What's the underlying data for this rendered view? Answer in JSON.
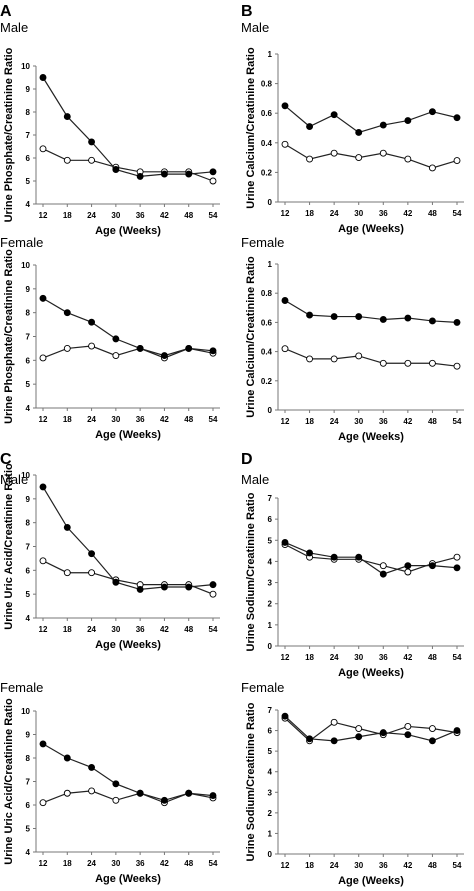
{
  "chart_data": [
    {
      "type": "line",
      "panel": "A",
      "group": "Male",
      "x": [
        12,
        18,
        24,
        30,
        36,
        42,
        48,
        54
      ],
      "xlabel": "Age (Weeks)",
      "ylabel": "Urine Phosphate/Creatinine Ratio",
      "ylim": [
        4,
        10
      ],
      "yticks": [
        "4",
        "5",
        "6",
        "7",
        "8",
        "9",
        "10"
      ],
      "series": [
        {
          "marker": "filled",
          "values": [
            9.5,
            7.8,
            6.7,
            5.5,
            5.2,
            5.3,
            5.3,
            5.4
          ]
        },
        {
          "marker": "open",
          "values": [
            6.4,
            5.9,
            5.9,
            5.6,
            5.4,
            5.4,
            5.4,
            5.0
          ]
        }
      ]
    },
    {
      "type": "line",
      "panel": "B",
      "group": "Male",
      "x": [
        12,
        18,
        24,
        30,
        36,
        42,
        48,
        54
      ],
      "xlabel": "Age (Weeks)",
      "ylabel": "Urine Calcium/Creatinine Ratio",
      "ylim": [
        0,
        1
      ],
      "yticks": [
        "0",
        "0.2",
        "0.4",
        "0.6",
        "0.8",
        "1"
      ],
      "series": [
        {
          "marker": "filled",
          "values": [
            0.65,
            0.51,
            0.59,
            0.47,
            0.52,
            0.55,
            0.61,
            0.57
          ]
        },
        {
          "marker": "open",
          "values": [
            0.39,
            0.29,
            0.33,
            0.3,
            0.33,
            0.29,
            0.23,
            0.28
          ]
        }
      ]
    },
    {
      "type": "line",
      "panel": "",
      "group": "Female",
      "x": [
        12,
        18,
        24,
        30,
        36,
        42,
        48,
        54
      ],
      "xlabel": "Age (Weeks)",
      "ylabel": "Urine Phosphate/Creatinine Ratio",
      "ylim": [
        4,
        10
      ],
      "yticks": [
        "4",
        "5",
        "6",
        "7",
        "8",
        "9",
        "10"
      ],
      "series": [
        {
          "marker": "filled",
          "values": [
            8.6,
            8.0,
            7.6,
            6.9,
            6.5,
            6.2,
            6.5,
            6.4
          ]
        },
        {
          "marker": "open",
          "values": [
            6.1,
            6.5,
            6.6,
            6.2,
            6.5,
            6.1,
            6.5,
            6.3
          ]
        }
      ]
    },
    {
      "type": "line",
      "panel": "",
      "group": "Female",
      "x": [
        12,
        18,
        24,
        30,
        36,
        42,
        48,
        54
      ],
      "xlabel": "Age (Weeks)",
      "ylabel": "Urine Calcium/Creatinine Ratio",
      "ylim": [
        0,
        1
      ],
      "yticks": [
        "0",
        "0.2",
        "0.4",
        "0.6",
        "0.8",
        "1"
      ],
      "series": [
        {
          "marker": "filled",
          "values": [
            0.75,
            0.65,
            0.64,
            0.64,
            0.62,
            0.63,
            0.61,
            0.6
          ]
        },
        {
          "marker": "open",
          "values": [
            0.42,
            0.35,
            0.35,
            0.37,
            0.32,
            0.32,
            0.32,
            0.3
          ]
        }
      ]
    },
    {
      "type": "line",
      "panel": "C",
      "group": "Male",
      "x": [
        12,
        18,
        24,
        30,
        36,
        42,
        48,
        54
      ],
      "xlabel": "Age (Weeks)",
      "ylabel": "Urine Uric Acid/Creatinine Ratio",
      "ylim": [
        4,
        10
      ],
      "yticks": [
        "4",
        "5",
        "6",
        "7",
        "8",
        "9",
        "10"
      ],
      "series": [
        {
          "marker": "filled",
          "values": [
            9.5,
            7.8,
            6.7,
            5.5,
            5.2,
            5.3,
            5.3,
            5.4
          ]
        },
        {
          "marker": "open",
          "values": [
            6.4,
            5.9,
            5.9,
            5.6,
            5.4,
            5.4,
            5.4,
            5.0
          ]
        }
      ]
    },
    {
      "type": "line",
      "panel": "D",
      "group": "Male",
      "x": [
        12,
        18,
        24,
        30,
        36,
        42,
        48,
        54
      ],
      "xlabel": "Age (Weeks)",
      "ylabel": "Urine Sodium/Creatinine Ratio",
      "ylim": [
        0,
        7
      ],
      "yticks": [
        "0",
        "1",
        "2",
        "3",
        "4",
        "5",
        "6",
        "7"
      ],
      "series": [
        {
          "marker": "filled",
          "values": [
            4.9,
            4.4,
            4.2,
            4.2,
            3.4,
            3.8,
            3.8,
            3.7
          ]
        },
        {
          "marker": "open",
          "values": [
            4.8,
            4.2,
            4.1,
            4.1,
            3.8,
            3.5,
            3.9,
            4.2
          ]
        }
      ]
    },
    {
      "type": "line",
      "panel": "",
      "group": "Female",
      "x": [
        12,
        18,
        24,
        30,
        36,
        42,
        48,
        54
      ],
      "xlabel": "Age (Weeks)",
      "ylabel": "Urine Uric Acid/Creatinine Ratio",
      "ylim": [
        4,
        10
      ],
      "yticks": [
        "4",
        "5",
        "6",
        "7",
        "8",
        "9",
        "10"
      ],
      "series": [
        {
          "marker": "filled",
          "values": [
            8.6,
            8.0,
            7.6,
            6.9,
            6.5,
            6.2,
            6.5,
            6.4
          ]
        },
        {
          "marker": "open",
          "values": [
            6.1,
            6.5,
            6.6,
            6.2,
            6.5,
            6.1,
            6.5,
            6.3
          ]
        }
      ]
    },
    {
      "type": "line",
      "panel": "",
      "group": "Female",
      "x": [
        12,
        18,
        24,
        30,
        36,
        42,
        48,
        54
      ],
      "xlabel": "Age (Weeks)",
      "ylabel": "Urine Sodium/Creatinine Ratio",
      "ylim": [
        0,
        7
      ],
      "yticks": [
        "0",
        "1",
        "2",
        "3",
        "4",
        "5",
        "6",
        "7"
      ],
      "series": [
        {
          "marker": "filled",
          "values": [
            6.7,
            5.6,
            5.5,
            5.7,
            5.9,
            5.8,
            5.5,
            6.0
          ]
        },
        {
          "marker": "open",
          "values": [
            6.6,
            5.5,
            6.4,
            6.1,
            5.8,
            6.2,
            6.1,
            5.9
          ]
        }
      ]
    }
  ]
}
